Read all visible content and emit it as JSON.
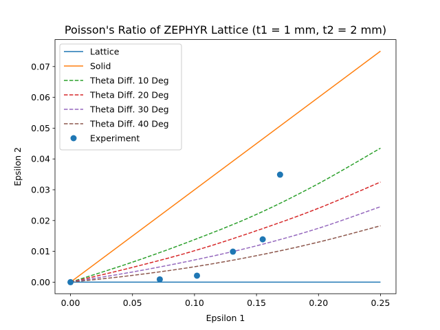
{
  "chart_data": {
    "type": "line",
    "title": "Poisson's Ratio of ZEPHYR Lattice (t1 = 1 mm, t2 = 2 mm)",
    "xlabel": "Epsilon 1",
    "ylabel": "Epsilon 2",
    "xlim": [
      -0.0125,
      0.2625
    ],
    "ylim": [
      -0.00375,
      0.07875
    ],
    "xticks": [
      0.0,
      0.05,
      0.1,
      0.15,
      0.2,
      0.25
    ],
    "xtick_labels": [
      "0.00",
      "0.05",
      "0.10",
      "0.15",
      "0.20",
      "0.25"
    ],
    "yticks": [
      0.0,
      0.01,
      0.02,
      0.03,
      0.04,
      0.05,
      0.06,
      0.07
    ],
    "ytick_labels": [
      "0.00",
      "0.01",
      "0.02",
      "0.03",
      "0.04",
      "0.05",
      "0.06",
      "0.07"
    ],
    "grid": false,
    "legend": "top-left",
    "series": [
      {
        "name": "Lattice",
        "style": "solid",
        "color": "#1f77b4",
        "x": [
          0,
          0.25
        ],
        "y": [
          0,
          0
        ]
      },
      {
        "name": "Solid",
        "style": "solid",
        "color": "#ff7f0e",
        "x": [
          0,
          0.25
        ],
        "y": [
          0,
          0.075
        ]
      },
      {
        "name": "Theta Diff. 10 Deg",
        "style": "dashed",
        "color": "#2ca02c",
        "x": [
          0,
          0.05,
          0.1,
          0.15,
          0.2,
          0.25
        ],
        "y": [
          0,
          0.0065,
          0.0138,
          0.022,
          0.032,
          0.0435
        ]
      },
      {
        "name": "Theta Diff. 20 Deg",
        "style": "dashed",
        "color": "#d62728",
        "x": [
          0,
          0.05,
          0.1,
          0.15,
          0.2,
          0.25
        ],
        "y": [
          0,
          0.0048,
          0.0102,
          0.0167,
          0.024,
          0.0325
        ]
      },
      {
        "name": "Theta Diff. 30 Deg",
        "style": "dashed",
        "color": "#9467bd",
        "x": [
          0,
          0.05,
          0.1,
          0.15,
          0.2,
          0.25
        ],
        "y": [
          0,
          0.0033,
          0.0072,
          0.0118,
          0.0175,
          0.0245
        ]
      },
      {
        "name": "Theta Diff. 40 Deg",
        "style": "dashed",
        "color": "#8c564b",
        "x": [
          0,
          0.05,
          0.1,
          0.15,
          0.2,
          0.25
        ],
        "y": [
          0,
          0.0022,
          0.005,
          0.0086,
          0.013,
          0.0183
        ]
      },
      {
        "name": "Experiment",
        "style": "scatter",
        "color": "#1f77b4",
        "x": [
          0,
          0.072,
          0.102,
          0.131,
          0.155,
          0.169
        ],
        "y": [
          0,
          0.0009,
          0.0021,
          0.0099,
          0.0139,
          0.0349
        ]
      }
    ]
  }
}
